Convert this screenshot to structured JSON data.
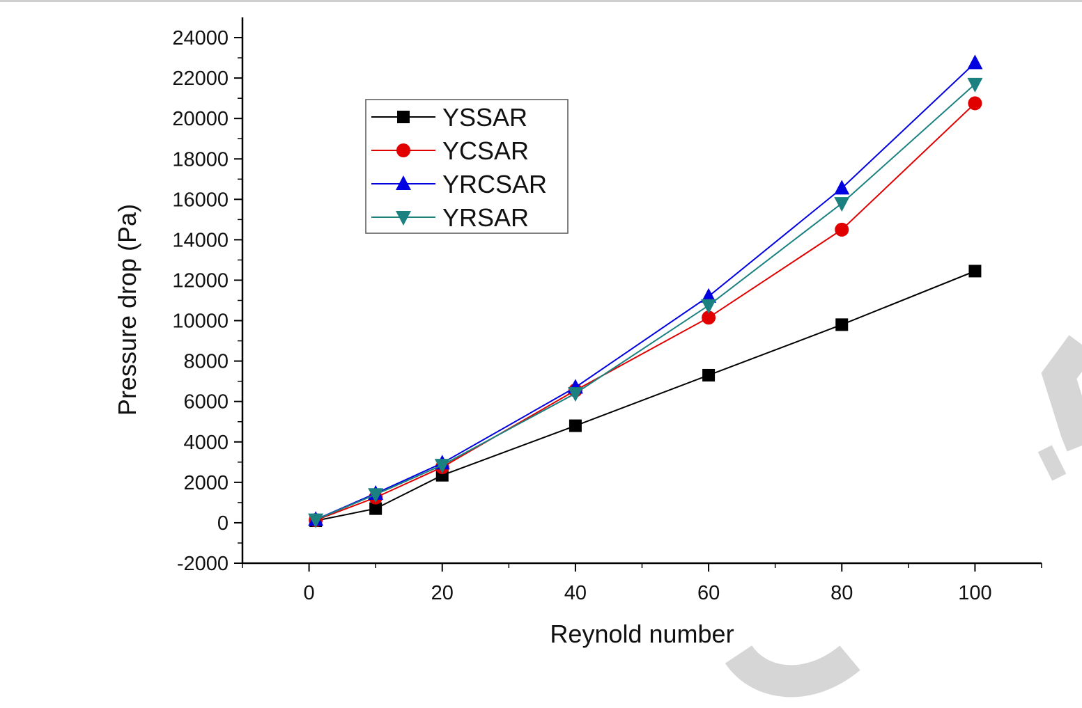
{
  "chart_data": {
    "type": "line",
    "title": "",
    "xlabel": "Reynold number",
    "ylabel": "Pressure drop (Pa)",
    "xlim": [
      -10,
      110
    ],
    "ylim": [
      -2000,
      25000
    ],
    "x_ticks": [
      0,
      20,
      40,
      60,
      80,
      100
    ],
    "y_ticks": [
      -2000,
      0,
      2000,
      4000,
      6000,
      8000,
      10000,
      12000,
      14000,
      16000,
      18000,
      20000,
      22000,
      24000
    ],
    "grid": false,
    "legend_position": "upper-left",
    "series": [
      {
        "name": "YSSAR",
        "color": "#000000",
        "marker": "square",
        "x": [
          1,
          10,
          20,
          40,
          60,
          80,
          100
        ],
        "y": [
          100,
          700,
          2350,
          4800,
          7300,
          9800,
          12450
        ]
      },
      {
        "name": "YCSAR",
        "color": "#e00000",
        "marker": "circle",
        "x": [
          1,
          10,
          20,
          40,
          60,
          80,
          100
        ],
        "y": [
          130,
          1250,
          2750,
          6550,
          10150,
          14500,
          20750
        ]
      },
      {
        "name": "YRCSAR",
        "color": "#0000e0",
        "marker": "triangle-up",
        "x": [
          1,
          10,
          20,
          40,
          60,
          80,
          100
        ],
        "y": [
          160,
          1450,
          2950,
          6700,
          11200,
          16550,
          22750
        ]
      },
      {
        "name": "YRSAR",
        "color": "#1a8080",
        "marker": "triangle-down",
        "x": [
          1,
          10,
          20,
          40,
          60,
          80,
          100
        ],
        "y": [
          150,
          1400,
          2850,
          6400,
          10750,
          15800,
          21700
        ]
      }
    ]
  }
}
